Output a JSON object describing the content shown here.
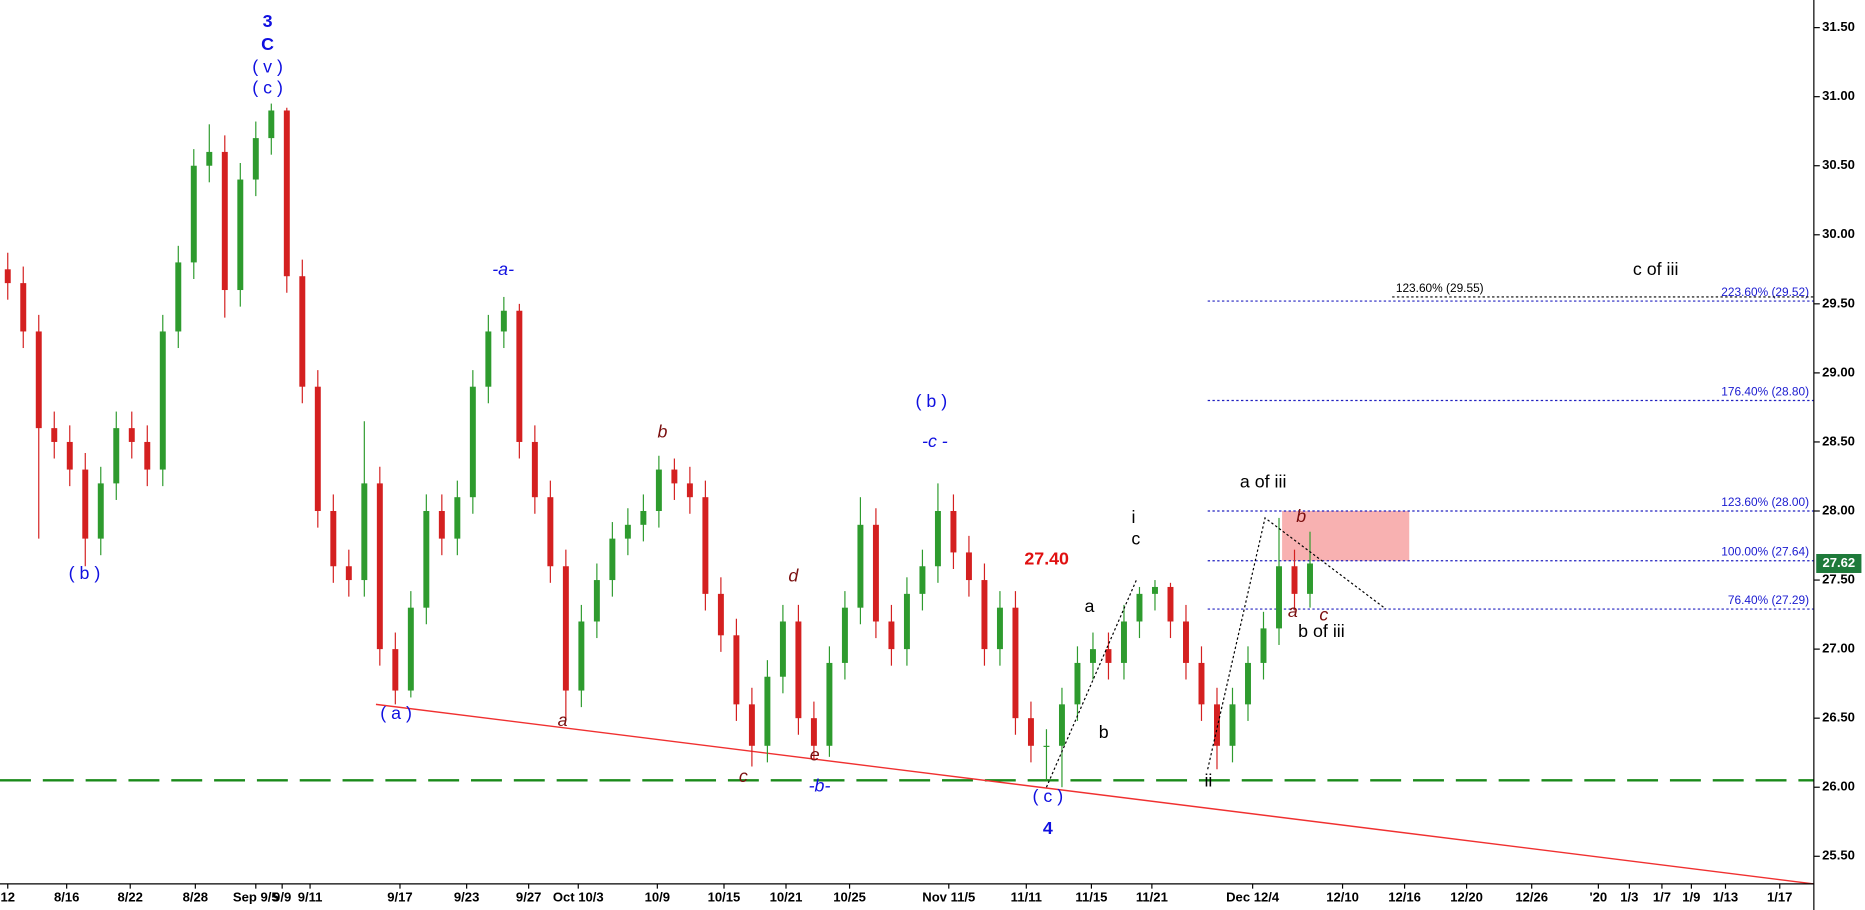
{
  "chart_data": {
    "type": "candlestick",
    "x": [
      0,
      1,
      2,
      3,
      4,
      5,
      6,
      7,
      8,
      9,
      10,
      11,
      12,
      13,
      14,
      15,
      16,
      17,
      18,
      19,
      20,
      21,
      22,
      23,
      24,
      25,
      26,
      27,
      28,
      29,
      30,
      31,
      32,
      33,
      34,
      35,
      36,
      37,
      38,
      39,
      40,
      41,
      42,
      43,
      44,
      45,
      46,
      47,
      48,
      49,
      50,
      51,
      52,
      53,
      54,
      55,
      56,
      57,
      58,
      59,
      60,
      61,
      62,
      63,
      64,
      65,
      66,
      67,
      68,
      69,
      70,
      71,
      72,
      73,
      74,
      75,
      76,
      77,
      78,
      79,
      80,
      81,
      82,
      83,
      84
    ],
    "open": [
      29.75,
      29.65,
      29.3,
      28.6,
      28.5,
      28.3,
      27.8,
      28.2,
      28.6,
      28.5,
      28.3,
      29.3,
      29.8,
      30.5,
      30.6,
      29.6,
      30.4,
      30.7,
      30.9,
      29.7,
      28.9,
      28.0,
      27.6,
      27.5,
      28.2,
      27.0,
      26.7,
      27.3,
      28.0,
      27.8,
      28.1,
      28.9,
      29.3,
      29.45,
      28.5,
      28.1,
      27.6,
      26.7,
      27.2,
      27.5,
      27.8,
      27.9,
      28.0,
      28.3,
      28.2,
      28.1,
      27.4,
      27.1,
      26.6,
      26.3,
      26.8,
      27.2,
      26.5,
      26.3,
      26.9,
      27.3,
      27.9,
      27.2,
      27.0,
      27.4,
      27.6,
      28.0,
      27.7,
      27.5,
      27.0,
      27.3,
      26.5,
      26.3,
      26.3,
      26.6,
      26.9,
      27.0,
      26.9,
      27.2,
      27.4,
      27.45,
      27.2,
      26.9,
      26.6,
      26.3,
      26.6,
      26.9,
      27.15,
      27.6,
      27.4
    ],
    "high": [
      29.87,
      29.77,
      29.42,
      28.72,
      28.62,
      28.42,
      28.32,
      28.72,
      28.72,
      28.62,
      29.42,
      29.92,
      30.62,
      30.8,
      30.72,
      30.52,
      30.82,
      30.95,
      30.92,
      29.82,
      29.02,
      28.12,
      27.72,
      28.65,
      28.32,
      27.12,
      27.42,
      28.12,
      28.12,
      28.22,
      29.02,
      29.42,
      29.55,
      29.5,
      28.62,
      28.22,
      27.72,
      27.32,
      27.62,
      27.92,
      28.02,
      28.12,
      28.4,
      28.38,
      28.32,
      28.22,
      27.52,
      27.22,
      26.72,
      26.92,
      27.32,
      27.32,
      26.62,
      27.02,
      27.42,
      28.1,
      28.02,
      27.32,
      27.52,
      27.72,
      28.2,
      28.12,
      27.82,
      27.62,
      27.42,
      27.42,
      26.62,
      26.42,
      26.72,
      27.02,
      27.12,
      27.12,
      27.32,
      27.45,
      27.5,
      27.48,
      27.32,
      27.02,
      26.72,
      26.72,
      27.02,
      27.27,
      27.95,
      27.72,
      27.85
    ],
    "low": [
      29.53,
      29.18,
      27.8,
      28.38,
      28.18,
      27.6,
      27.68,
      28.08,
      28.38,
      28.18,
      28.18,
      29.18,
      29.68,
      30.38,
      29.4,
      29.48,
      30.28,
      30.58,
      29.58,
      28.78,
      27.88,
      27.48,
      27.38,
      27.38,
      26.88,
      26.6,
      26.65,
      27.18,
      27.68,
      27.68,
      27.98,
      28.78,
      29.18,
      28.38,
      27.98,
      27.48,
      26.5,
      26.58,
      27.08,
      27.38,
      27.68,
      27.78,
      27.88,
      28.08,
      27.98,
      27.28,
      26.98,
      26.48,
      26.15,
      26.18,
      26.68,
      26.38,
      26.2,
      26.22,
      26.78,
      27.18,
      27.08,
      26.88,
      26.88,
      27.28,
      27.48,
      27.58,
      27.38,
      26.88,
      26.88,
      26.38,
      26.18,
      26.05,
      26.0,
      26.48,
      26.78,
      26.78,
      26.78,
      27.08,
      27.28,
      27.08,
      26.78,
      26.48,
      26.13,
      26.18,
      26.48,
      26.78,
      27.03,
      27.28,
      27.3
    ],
    "close": [
      29.65,
      29.3,
      28.6,
      28.5,
      28.3,
      27.8,
      28.2,
      28.6,
      28.5,
      28.3,
      29.3,
      29.8,
      30.5,
      30.6,
      29.6,
      30.4,
      30.7,
      30.9,
      29.7,
      28.9,
      28.0,
      27.6,
      27.5,
      28.2,
      27.0,
      26.7,
      27.3,
      28.0,
      27.8,
      28.1,
      28.9,
      29.3,
      29.45,
      28.5,
      28.1,
      27.6,
      26.7,
      27.2,
      27.5,
      27.8,
      27.9,
      28.0,
      28.3,
      28.2,
      28.1,
      27.4,
      27.1,
      26.6,
      26.3,
      26.8,
      27.2,
      26.5,
      26.3,
      26.9,
      27.3,
      27.9,
      27.2,
      27.0,
      27.4,
      27.6,
      28.0,
      27.7,
      27.5,
      27.0,
      27.3,
      26.5,
      26.3,
      26.3,
      26.6,
      26.9,
      27.0,
      26.9,
      27.2,
      27.4,
      27.45,
      27.2,
      26.9,
      26.6,
      26.3,
      26.6,
      26.9,
      27.15,
      27.6,
      27.4,
      27.62
    ],
    "up_color": "#2e9b2e",
    "down_color": "#d42020",
    "last_price": 27.62,
    "xlim": [
      -0.5,
      116.5
    ],
    "ylim": [
      25.3,
      31.7
    ],
    "yticks": [
      {
        "value": 25.5,
        "label": "25.50"
      },
      {
        "value": 26.0,
        "label": "26.00"
      },
      {
        "value": 26.5,
        "label": "26.50"
      },
      {
        "value": 27.0,
        "label": "27.00"
      },
      {
        "value": 27.5,
        "label": "27.50"
      },
      {
        "value": 28.0,
        "label": "28.00"
      },
      {
        "value": 28.5,
        "label": "28.50"
      },
      {
        "value": 29.0,
        "label": "29.00"
      },
      {
        "value": 29.5,
        "label": "29.50"
      },
      {
        "value": 30.0,
        "label": "30.00"
      },
      {
        "value": 30.5,
        "label": "30.50"
      },
      {
        "value": 31.0,
        "label": "31.00"
      },
      {
        "value": 31.5,
        "label": "31.50"
      }
    ],
    "xticks": [
      {
        "value": 0,
        "label": "12"
      },
      {
        "value": 3.8,
        "label": "8/16"
      },
      {
        "value": 7.9,
        "label": "8/22"
      },
      {
        "value": 12.1,
        "label": "8/28"
      },
      {
        "value": 16,
        "label": "Sep 9/5"
      },
      {
        "value": 17.7,
        "label": "9/9"
      },
      {
        "value": 19.5,
        "label": "9/11"
      },
      {
        "value": 25.3,
        "label": "9/17"
      },
      {
        "value": 29.6,
        "label": "9/23"
      },
      {
        "value": 33.6,
        "label": "9/27"
      },
      {
        "value": 36.8,
        "label": "Oct 10/3"
      },
      {
        "value": 41.9,
        "label": "10/9"
      },
      {
        "value": 46.2,
        "label": "10/15"
      },
      {
        "value": 50.2,
        "label": "10/21"
      },
      {
        "value": 54.3,
        "label": "10/25"
      },
      {
        "value": 60.7,
        "label": "Nov 11/5"
      },
      {
        "value": 65.7,
        "label": "11/11"
      },
      {
        "value": 69.9,
        "label": "11/15"
      },
      {
        "value": 73.8,
        "label": "11/21"
      },
      {
        "value": 80.3,
        "label": "Dec 12/4"
      },
      {
        "value": 86.1,
        "label": "12/10"
      },
      {
        "value": 90.1,
        "label": "12/16"
      },
      {
        "value": 94.1,
        "label": "12/20"
      },
      {
        "value": 98.3,
        "label": "12/26"
      },
      {
        "value": 102.6,
        "label": "'20"
      },
      {
        "value": 104.6,
        "label": "1/3"
      },
      {
        "value": 106.7,
        "label": "1/7"
      },
      {
        "value": 108.6,
        "label": "1/9"
      },
      {
        "value": 110.8,
        "label": "1/13"
      },
      {
        "value": 114.3,
        "label": "1/17"
      }
    ],
    "support_level": 26.05,
    "trendline": {
      "x": [
        23.75,
        116.5
      ],
      "y": [
        26.6,
        25.3
      ]
    },
    "fib_start_x": 77.4,
    "fib_levels": [
      {
        "label": "223.60% (29.52)",
        "value": 29.52
      },
      {
        "label": "176.40% (28.80)",
        "value": 28.8
      },
      {
        "label": "123.60% (28.00)",
        "value": 28.0
      },
      {
        "label": "100.00% (27.64)",
        "value": 27.64
      },
      {
        "label": "76.40% (27.29)",
        "value": 27.29
      }
    ],
    "fib_alt": {
      "label": "123.60% (29.55)",
      "value": 29.55,
      "start_x": 89.3
    },
    "target_box": {
      "x": [
        82.2,
        90.4
      ],
      "y": [
        27.64,
        28.0
      ]
    },
    "wave_paths": [
      {
        "x": [
          67.0,
          72.8
        ],
        "y": [
          26.0,
          27.5
        ]
      },
      {
        "x": [
          77.4,
          81.1,
          88.9
        ],
        "y": [
          26.13,
          27.95,
          27.29
        ]
      }
    ],
    "wave_labels": [
      {
        "text": "3",
        "color": "#1010e0"
      },
      {
        "text": "C",
        "color": "#1010e0"
      },
      {
        "text": "( v )",
        "color": "#1010e0"
      },
      {
        "text": "( c )",
        "color": "#1010e0"
      },
      {
        "text": "( b )",
        "color": "#1010e0"
      },
      {
        "text": "( a )",
        "color": "#1010e0"
      },
      {
        "text": "-a-",
        "color": "#1010e0"
      },
      {
        "text": "a",
        "color": "#7a0e0e"
      },
      {
        "text": "b",
        "color": "#7a0e0e"
      },
      {
        "text": "c",
        "color": "#7a0e0e"
      },
      {
        "text": "d",
        "color": "#7a0e0e"
      },
      {
        "text": "e",
        "color": "#7a0e0e"
      },
      {
        "text": "-b-",
        "color": "#1010e0"
      },
      {
        "text": "( b )",
        "color": "#1010e0"
      },
      {
        "text": "-c -",
        "color": "#1010e0"
      },
      {
        "text": "27.40",
        "color": "#e01010"
      },
      {
        "text": "( c )",
        "color": "#1010e0"
      },
      {
        "text": "4",
        "color": "#1010e0"
      },
      {
        "text": "a",
        "color": "#000000"
      },
      {
        "text": "b",
        "color": "#000000"
      },
      {
        "text": "i",
        "color": "#000000"
      },
      {
        "text": "c",
        "color": "#000000"
      },
      {
        "text": "ii",
        "color": "#000000"
      },
      {
        "text": "a of iii",
        "color": "#000000"
      },
      {
        "text": "b",
        "color": "#7a0e0e"
      },
      {
        "text": "a",
        "color": "#7a0e0e"
      },
      {
        "text": "c",
        "color": "#7a0e0e"
      },
      {
        "text": "b of iii",
        "color": "#000000"
      },
      {
        "text": "c of iii",
        "color": "#000000"
      }
    ]
  }
}
